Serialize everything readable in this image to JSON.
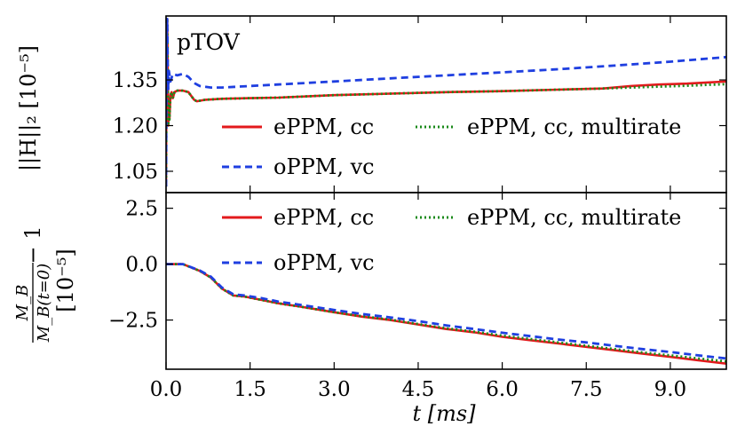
{
  "chart_data": [
    {
      "panel": "top",
      "type": "line",
      "annotation": "pTOV",
      "ylabel": "||H||₂ [10⁻⁵]",
      "xlim": [
        0,
        10
      ],
      "ylim": [
        0.98,
        1.56
      ],
      "yticks": [
        1.05,
        1.2,
        1.35
      ],
      "ytick_labels": [
        "1.05",
        "1.20",
        "1.35"
      ],
      "grid": false,
      "legend": [
        {
          "label": "ePPM, cc",
          "color": "#e31a1c",
          "dash": "solid"
        },
        {
          "label": "ePPM, cc, multirate",
          "color": "#1a8a1a",
          "dash": "dashdot"
        },
        {
          "label": "oPPM, vc",
          "color": "#1f3fe0",
          "dash": "dashed"
        }
      ],
      "series": [
        {
          "name": "ePPM, cc",
          "color": "#e31a1c",
          "dash": "solid",
          "x": [
            0,
            0.01,
            0.02,
            0.03,
            0.04,
            0.05,
            0.06,
            0.08,
            0.1,
            0.12,
            0.15,
            0.2,
            0.3,
            0.4,
            0.5,
            0.55,
            0.7,
            1.0,
            1.5,
            2.0,
            3.0,
            4.0,
            5.0,
            6.0,
            7.0,
            7.8,
            8.3,
            8.8,
            9.3,
            9.7,
            10.0
          ],
          "y": [
            1.0,
            1.45,
            1.55,
            1.38,
            1.2,
            1.28,
            1.22,
            1.3,
            1.31,
            1.29,
            1.31,
            1.315,
            1.315,
            1.31,
            1.285,
            1.28,
            1.285,
            1.288,
            1.29,
            1.292,
            1.3,
            1.305,
            1.31,
            1.313,
            1.318,
            1.322,
            1.33,
            1.335,
            1.338,
            1.342,
            1.345
          ]
        },
        {
          "name": "ePPM, cc, multirate",
          "color": "#1a8a1a",
          "dash": "dashdot",
          "x": [
            0,
            0.01,
            0.02,
            0.03,
            0.04,
            0.05,
            0.06,
            0.08,
            0.1,
            0.12,
            0.15,
            0.2,
            0.3,
            0.4,
            0.5,
            0.55,
            0.7,
            1.0,
            1.5,
            2.0,
            3.0,
            4.0,
            5.0,
            6.0,
            7.0,
            7.8,
            8.3,
            8.8,
            9.3,
            9.7,
            10.0
          ],
          "y": [
            1.0,
            1.45,
            1.55,
            1.38,
            1.2,
            1.28,
            1.22,
            1.3,
            1.31,
            1.29,
            1.31,
            1.315,
            1.315,
            1.31,
            1.285,
            1.28,
            1.285,
            1.288,
            1.29,
            1.292,
            1.3,
            1.305,
            1.31,
            1.313,
            1.318,
            1.322,
            1.325,
            1.328,
            1.331,
            1.334,
            1.336
          ]
        },
        {
          "name": "oPPM, vc",
          "color": "#1f3fe0",
          "dash": "dashed",
          "x": [
            0,
            0.01,
            0.02,
            0.03,
            0.04,
            0.05,
            0.08,
            0.12,
            0.2,
            0.3,
            0.4,
            0.5,
            0.6,
            0.8,
            1.0,
            2.0,
            3.0,
            4.0,
            5.0,
            6.0,
            7.0,
            8.0,
            9.0,
            10.0
          ],
          "y": [
            1.0,
            1.48,
            1.55,
            1.4,
            1.32,
            1.38,
            1.345,
            1.37,
            1.365,
            1.37,
            1.36,
            1.34,
            1.33,
            1.325,
            1.325,
            1.335,
            1.345,
            1.355,
            1.365,
            1.375,
            1.385,
            1.397,
            1.41,
            1.425
          ]
        }
      ]
    },
    {
      "panel": "bottom",
      "type": "line",
      "ylabel_fraction": {
        "numerator": "M_B",
        "denominator": "M_B(t=0)",
        "suffix": "− 1"
      },
      "ylabel_units": "[10⁻⁵]",
      "xlabel": "t [ms]",
      "xlim": [
        0,
        10
      ],
      "ylim": [
        -4.7,
        3.2
      ],
      "xticks": [
        0.0,
        1.5,
        3.0,
        4.5,
        6.0,
        7.5,
        9.0
      ],
      "xtick_labels": [
        "0.0",
        "1.5",
        "3.0",
        "4.5",
        "6.0",
        "7.5",
        "9.0"
      ],
      "yticks": [
        -2.5,
        0.0,
        2.5
      ],
      "ytick_labels": [
        "−2.5",
        "0.0",
        "2.5"
      ],
      "grid": false,
      "legend": [
        {
          "label": "ePPM, cc",
          "color": "#e31a1c",
          "dash": "solid"
        },
        {
          "label": "ePPM, cc, multirate",
          "color": "#1a8a1a",
          "dash": "dashdot"
        },
        {
          "label": "oPPM, vc",
          "color": "#1f3fe0",
          "dash": "dashed"
        }
      ],
      "series": [
        {
          "name": "ePPM, cc",
          "color": "#e31a1c",
          "dash": "solid",
          "x": [
            0,
            0.3,
            0.6,
            0.8,
            1.0,
            1.2,
            1.4,
            1.7,
            2.0,
            2.4,
            3.0,
            3.5,
            4.0,
            4.5,
            5.0,
            5.5,
            6.0,
            6.5,
            7.0,
            7.5,
            8.0,
            8.5,
            9.0,
            9.5,
            10.0
          ],
          "y": [
            0.0,
            0.0,
            -0.3,
            -0.6,
            -1.1,
            -1.4,
            -1.45,
            -1.6,
            -1.75,
            -1.9,
            -2.15,
            -2.35,
            -2.5,
            -2.7,
            -2.9,
            -3.05,
            -3.25,
            -3.4,
            -3.55,
            -3.7,
            -3.85,
            -4.0,
            -4.15,
            -4.3,
            -4.45
          ]
        },
        {
          "name": "ePPM, cc, multirate",
          "color": "#1a8a1a",
          "dash": "dashdot",
          "x": [
            0,
            0.3,
            0.6,
            0.8,
            1.0,
            1.2,
            1.4,
            1.7,
            2.0,
            2.4,
            3.0,
            3.5,
            4.0,
            4.5,
            5.0,
            5.5,
            6.0,
            6.5,
            7.0,
            7.5,
            8.0,
            8.5,
            9.0,
            9.5,
            10.0
          ],
          "y": [
            0.0,
            0.0,
            -0.3,
            -0.6,
            -1.1,
            -1.4,
            -1.45,
            -1.6,
            -1.75,
            -1.9,
            -2.15,
            -2.33,
            -2.48,
            -2.68,
            -2.87,
            -3.02,
            -3.2,
            -3.35,
            -3.5,
            -3.65,
            -3.8,
            -3.95,
            -4.08,
            -4.22,
            -4.35
          ]
        },
        {
          "name": "oPPM, vc",
          "color": "#1f3fe0",
          "dash": "dashed",
          "x": [
            0,
            0.3,
            0.6,
            0.8,
            1.0,
            1.2,
            1.4,
            1.7,
            2.0,
            2.4,
            3.0,
            3.5,
            4.0,
            4.5,
            5.0,
            5.5,
            6.0,
            6.5,
            7.0,
            7.5,
            8.0,
            8.5,
            9.0,
            9.5,
            10.0
          ],
          "y": [
            0.0,
            0.0,
            -0.28,
            -0.56,
            -1.05,
            -1.35,
            -1.4,
            -1.52,
            -1.67,
            -1.82,
            -2.05,
            -2.23,
            -2.38,
            -2.55,
            -2.74,
            -2.9,
            -3.07,
            -3.22,
            -3.37,
            -3.5,
            -3.65,
            -3.8,
            -3.93,
            -4.08,
            -4.22
          ]
        }
      ]
    }
  ],
  "shared": {
    "xlabel": "t [ms]"
  }
}
